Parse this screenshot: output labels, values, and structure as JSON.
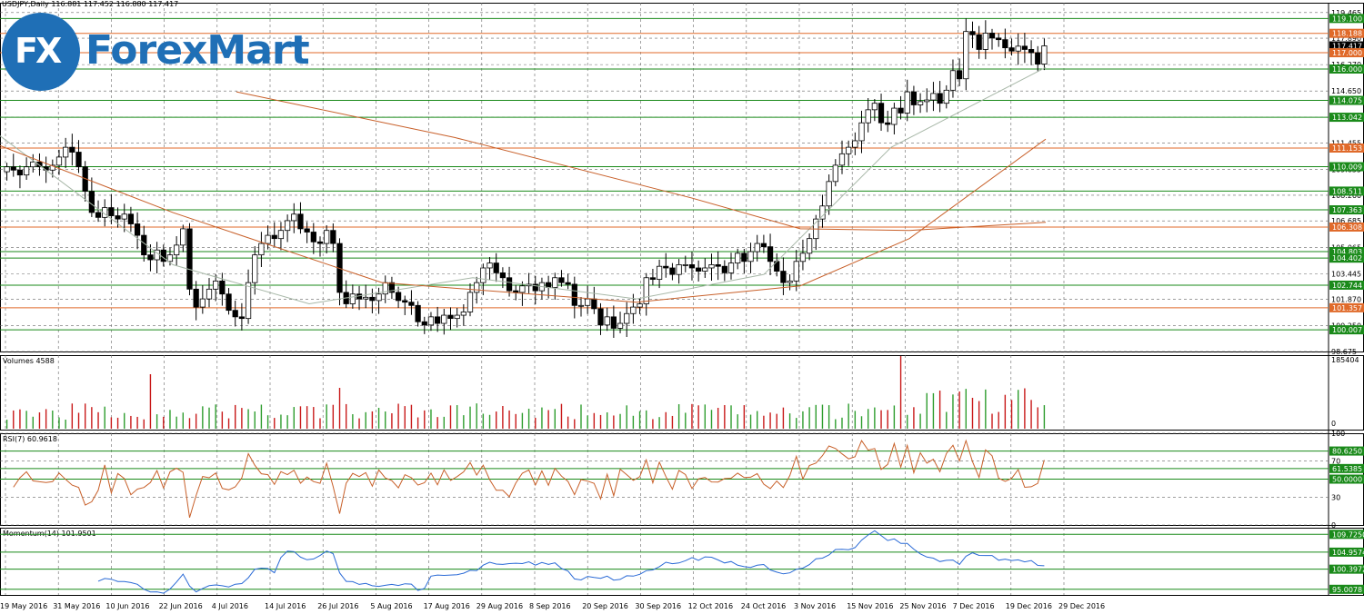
{
  "header": {
    "symbol_line": "USDJPY,Daily  116.881 117.452 116.880 117.417"
  },
  "logo": {
    "mark": "FX",
    "word": "ForexMart"
  },
  "colors": {
    "up_candle": "#ffffff",
    "down_candle": "#000000",
    "green_line": "#1a8a1a",
    "orange_line": "#e06a2a",
    "ma_brown": "#c8602a",
    "ma_gray": "#a8b8a8",
    "volume_green": "#2e9d2e",
    "volume_red": "#c81818",
    "rsi_line": "#c8602a",
    "momentum_line": "#2a6ad6"
  },
  "chart_data": [
    {
      "type": "candlestick",
      "title": "",
      "symbol": "USDJPY",
      "timeframe": "Daily",
      "ylim": [
        98.675,
        120.065
      ],
      "y_ticks": [
        "119.465",
        "117.890",
        "116.270",
        "114.650",
        "113.042",
        "111.455",
        "109.835",
        "108.260",
        "106.685",
        "105.065",
        "103.445",
        "101.870",
        "100.250",
        "98.675"
      ],
      "x_labels": [
        "19 May 2016",
        "31 May 2016",
        "10 Jun 2016",
        "22 Jun 2016",
        "4 Jul 2016",
        "14 Jul 2016",
        "26 Jul 2016",
        "5 Aug 2016",
        "17 Aug 2016",
        "29 Aug 2016",
        "8 Sep 2016",
        "20 Sep 2016",
        "30 Sep 2016",
        "12 Oct 2016",
        "24 Oct 2016",
        "3 Nov 2016",
        "15 Nov 2016",
        "25 Nov 2016",
        "7 Dec 2016",
        "19 Dec 2016",
        "29 Dec 2016"
      ],
      "horizontal_levels": [
        {
          "value": 119.1,
          "label": "119.100",
          "color": "green"
        },
        {
          "value": 118.188,
          "label": "118.188",
          "color": "orange"
        },
        {
          "value": 117.417,
          "label": "117.417",
          "color": "current"
        },
        {
          "value": 117.0,
          "label": "117.000",
          "color": "orange"
        },
        {
          "value": 116.0,
          "label": "116.000",
          "color": "green"
        },
        {
          "value": 114.075,
          "label": "114.075",
          "color": "green"
        },
        {
          "value": 113.042,
          "label": "113.042",
          "color": "green"
        },
        {
          "value": 111.153,
          "label": "111.153",
          "color": "orange"
        },
        {
          "value": 110.009,
          "label": "110.009",
          "color": "green"
        },
        {
          "value": 108.511,
          "label": "108.511",
          "color": "green"
        },
        {
          "value": 107.363,
          "label": "107.363",
          "color": "green"
        },
        {
          "value": 106.308,
          "label": "106.308",
          "color": "orange"
        },
        {
          "value": 104.803,
          "label": "104.803",
          "color": "green"
        },
        {
          "value": 104.402,
          "label": "104.402",
          "color": "green"
        },
        {
          "value": 102.744,
          "label": "102.744",
          "color": "green"
        },
        {
          "value": 101.357,
          "label": "101.357",
          "color": "orange"
        },
        {
          "value": 100.007,
          "label": "100.007",
          "color": "green"
        }
      ],
      "closes": [
        110.0,
        109.8,
        109.5,
        110.0,
        110.3,
        110.0,
        109.8,
        110.1,
        110.6,
        111.2,
        110.9,
        110.0,
        108.5,
        107.2,
        106.9,
        107.5,
        107.0,
        106.8,
        107.1,
        106.5,
        105.8,
        104.6,
        104.3,
        104.9,
        104.2,
        104.6,
        105.2,
        106.2,
        102.5,
        101.4,
        101.9,
        102.5,
        103.0,
        102.2,
        101.2,
        100.8,
        100.7,
        102.9,
        104.6,
        105.3,
        105.8,
        105.6,
        106.1,
        106.7,
        107.1,
        106.2,
        106.0,
        105.4,
        105.3,
        106.1,
        105.3,
        102.3,
        101.6,
        102.2,
        101.9,
        102.0,
        101.8,
        102.2,
        102.9,
        102.3,
        101.8,
        101.7,
        101.5,
        100.5,
        100.3,
        100.8,
        100.4,
        100.9,
        100.7,
        100.9,
        101.1,
        102.3,
        102.9,
        103.8,
        104.1,
        103.5,
        103.2,
        102.4,
        102.3,
        102.7,
        102.8,
        102.4,
        102.9,
        102.6,
        103.2,
        102.9,
        102.8,
        101.5,
        101.5,
        101.9,
        101.3,
        100.3,
        100.8,
        100.1,
        100.4,
        101.0,
        101.4,
        101.6,
        103.2,
        103.1,
        103.9,
        103.8,
        103.4,
        104.0,
        104.0,
        103.8,
        103.6,
        103.8,
        104.0,
        103.9,
        103.5,
        104.1,
        104.7,
        104.2,
        104.8,
        105.3,
        105.1,
        104.2,
        103.6,
        102.9,
        103.0,
        104.2,
        104.7,
        105.6,
        106.8,
        107.6,
        109.1,
        110.1,
        110.8,
        111.2,
        111.6,
        112.7,
        113.5,
        113.9,
        112.7,
        112.6,
        113.6,
        113.3,
        114.6,
        113.8,
        114.0,
        114.1,
        114.5,
        113.9,
        114.7,
        115.9,
        115.4,
        118.3,
        118.1,
        117.2,
        118.2,
        117.9,
        117.8,
        117.3,
        117.1,
        117.4,
        117.2,
        117.0,
        116.3,
        117.42
      ],
      "ma_fast_start_end": [
        [
          0,
          111.9
        ],
        [
          190,
          104.0
        ],
        [
          340,
          101.6
        ],
        [
          520,
          103.2
        ],
        [
          700,
          101.9
        ],
        [
          840,
          103.4
        ],
        [
          980,
          111.2
        ],
        [
          1150,
          116.1
        ]
      ],
      "ma_mid_start_end": [
        [
          0,
          111.3
        ],
        [
          190,
          107.2
        ],
        [
          420,
          102.9
        ],
        [
          700,
          101.7
        ],
        [
          880,
          102.7
        ],
        [
          1000,
          105.6
        ],
        [
          1150,
          111.7
        ]
      ],
      "ma_slow_start_end": [
        [
          260,
          114.6
        ],
        [
          500,
          111.8
        ],
        [
          760,
          108.1
        ],
        [
          880,
          106.2
        ],
        [
          1000,
          106.1
        ],
        [
          1150,
          106.6
        ]
      ]
    },
    {
      "type": "bar",
      "title": "Volumes 4588",
      "y_ticks": [
        "185404",
        "0"
      ],
      "ylim": [
        0,
        185404
      ],
      "values_note": "daily tick volumes, green on up bars, red on down bars"
    },
    {
      "type": "line",
      "title": "RSI(7) 60.9618",
      "ylim": [
        0,
        100
      ],
      "y_ticks": [
        "100",
        "70",
        "50",
        "30",
        "0"
      ],
      "levels": [
        {
          "value": 80.625,
          "label": "80.6250"
        },
        {
          "value": 61.5385,
          "label": "61.5385"
        },
        {
          "value": 50.0,
          "label": "50.0000"
        }
      ],
      "last_value": 60.9618
    },
    {
      "type": "line",
      "title": "Momentum(14) 101.9501",
      "ylim": [
        93.5,
        111.5
      ],
      "levels": [
        {
          "value": 109.725,
          "label": "109.7250"
        },
        {
          "value": 104.9574,
          "label": "104.9574"
        },
        {
          "value": 100.3972,
          "label": "100.3972"
        },
        {
          "value": 95.0078,
          "label": "95.0078"
        }
      ],
      "last_value": 101.9501
    }
  ]
}
